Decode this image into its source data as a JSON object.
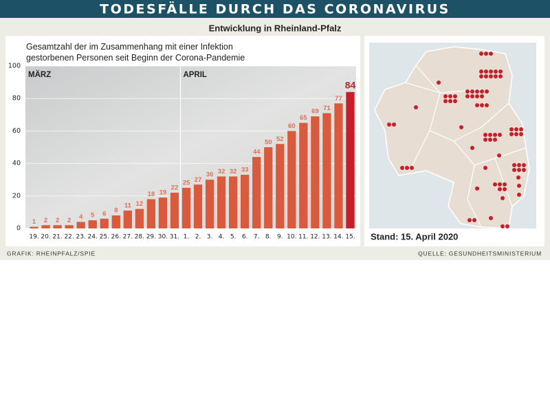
{
  "header": {
    "title": "TODESFÄLLE DURCH DAS CORONAVIRUS",
    "subtitle": "Entwicklung in Rheinland-Pfalz"
  },
  "chart_data": {
    "type": "bar",
    "title": "Gesamtzahl der im Zusammenhang mit einer Infektion gestorbenen Personen seit Beginn der Corona-Pandemie",
    "categories": [
      "19.",
      "20.",
      "21.",
      "22.",
      "23.",
      "24.",
      "25.",
      "26.",
      "27.",
      "28.",
      "29.",
      "30.",
      "31.",
      "1.",
      "2.",
      "3.",
      "4.",
      "5.",
      "6.",
      "7.",
      "8.",
      "9.",
      "10.",
      "11.",
      "12.",
      "13.",
      "14.",
      "15."
    ],
    "values": [
      1,
      2,
      2,
      2,
      4,
      5,
      6,
      8,
      11,
      12,
      18,
      19,
      22,
      25,
      27,
      30,
      32,
      32,
      33,
      44,
      50,
      52,
      60,
      65,
      69,
      71,
      77,
      84
    ],
    "color": "#d95a3c",
    "highlight_color": "#c41f2a",
    "annotations": [
      "MÄRZ",
      "APRIL"
    ],
    "ylim": [
      0,
      100
    ],
    "yticks": [
      0,
      20,
      40,
      60,
      80,
      100
    ],
    "grid": true
  },
  "map": {
    "caption": "Stand: 15. April 2020"
  },
  "footer": {
    "credit": "GRAFIK: RHEINPFALZ/SPIE",
    "source": "QUELLE: GESUNDHEITSMINISTERIUM"
  }
}
